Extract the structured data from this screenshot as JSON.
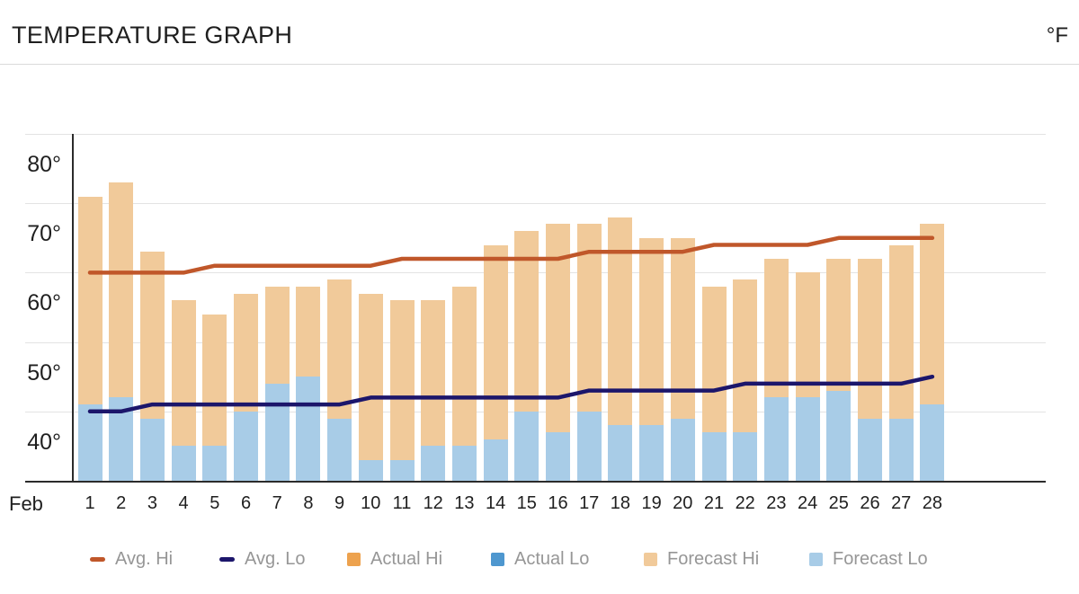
{
  "header": {
    "title": "TEMPERATURE GRAPH",
    "unit": "°F"
  },
  "x_axis": {
    "month_label": "Feb"
  },
  "chart_data": {
    "type": "bar",
    "title": "TEMPERATURE GRAPH",
    "unit": "°F",
    "categories": [
      "1",
      "2",
      "3",
      "4",
      "5",
      "6",
      "7",
      "8",
      "9",
      "10",
      "11",
      "12",
      "13",
      "14",
      "15",
      "16",
      "17",
      "18",
      "19",
      "20",
      "21",
      "22",
      "23",
      "24",
      "25",
      "26",
      "27",
      "28"
    ],
    "month": "Feb",
    "ylim": [
      30,
      80
    ],
    "y_ticks": [
      "80°",
      "70°",
      "60°",
      "50°",
      "40°"
    ],
    "y_tick_values": [
      80,
      70,
      60,
      50,
      40
    ],
    "grid": true,
    "legend_position": "bottom",
    "series": [
      {
        "name": "Avg. Hi",
        "type": "line",
        "swatch": "line",
        "color": "#c0572a",
        "values": [
          60,
          60,
          60,
          60,
          61,
          61,
          61,
          61,
          61,
          61,
          62,
          62,
          62,
          62,
          62,
          62,
          63,
          63,
          63,
          63,
          64,
          64,
          64,
          64,
          65,
          65,
          65,
          65
        ]
      },
      {
        "name": "Avg. Lo",
        "type": "line",
        "swatch": "line",
        "color": "#1c166b",
        "values": [
          40,
          40,
          41,
          41,
          41,
          41,
          41,
          41,
          41,
          42,
          42,
          42,
          42,
          42,
          42,
          42,
          43,
          43,
          43,
          43,
          43,
          44,
          44,
          44,
          44,
          44,
          44,
          45
        ]
      },
      {
        "name": "Actual Hi",
        "type": "bar",
        "swatch": "square",
        "color": "#eda24e",
        "values": []
      },
      {
        "name": "Actual Lo",
        "type": "bar",
        "swatch": "square",
        "color": "#4e97cf",
        "values": []
      },
      {
        "name": "Forecast Hi",
        "type": "bar",
        "swatch": "square",
        "color": "#f1ca9a",
        "values": [
          71,
          73,
          63,
          56,
          54,
          57,
          58,
          58,
          59,
          57,
          56,
          56,
          58,
          64,
          66,
          67,
          67,
          68,
          65,
          65,
          58,
          59,
          62,
          60,
          62,
          62,
          64,
          67
        ]
      },
      {
        "name": "Forecast Lo",
        "type": "bar",
        "swatch": "square",
        "color": "#a8cce7",
        "values": [
          41,
          42,
          39,
          35,
          35,
          40,
          44,
          45,
          39,
          33,
          33,
          35,
          35,
          36,
          40,
          37,
          40,
          38,
          38,
          39,
          37,
          37,
          42,
          42,
          43,
          39,
          39,
          41
        ]
      }
    ]
  },
  "colors": {
    "grid": "#e3e3e3",
    "axis": "#2b2b2b",
    "legend_text": "#969696",
    "title_text": "#1f1f1f"
  }
}
